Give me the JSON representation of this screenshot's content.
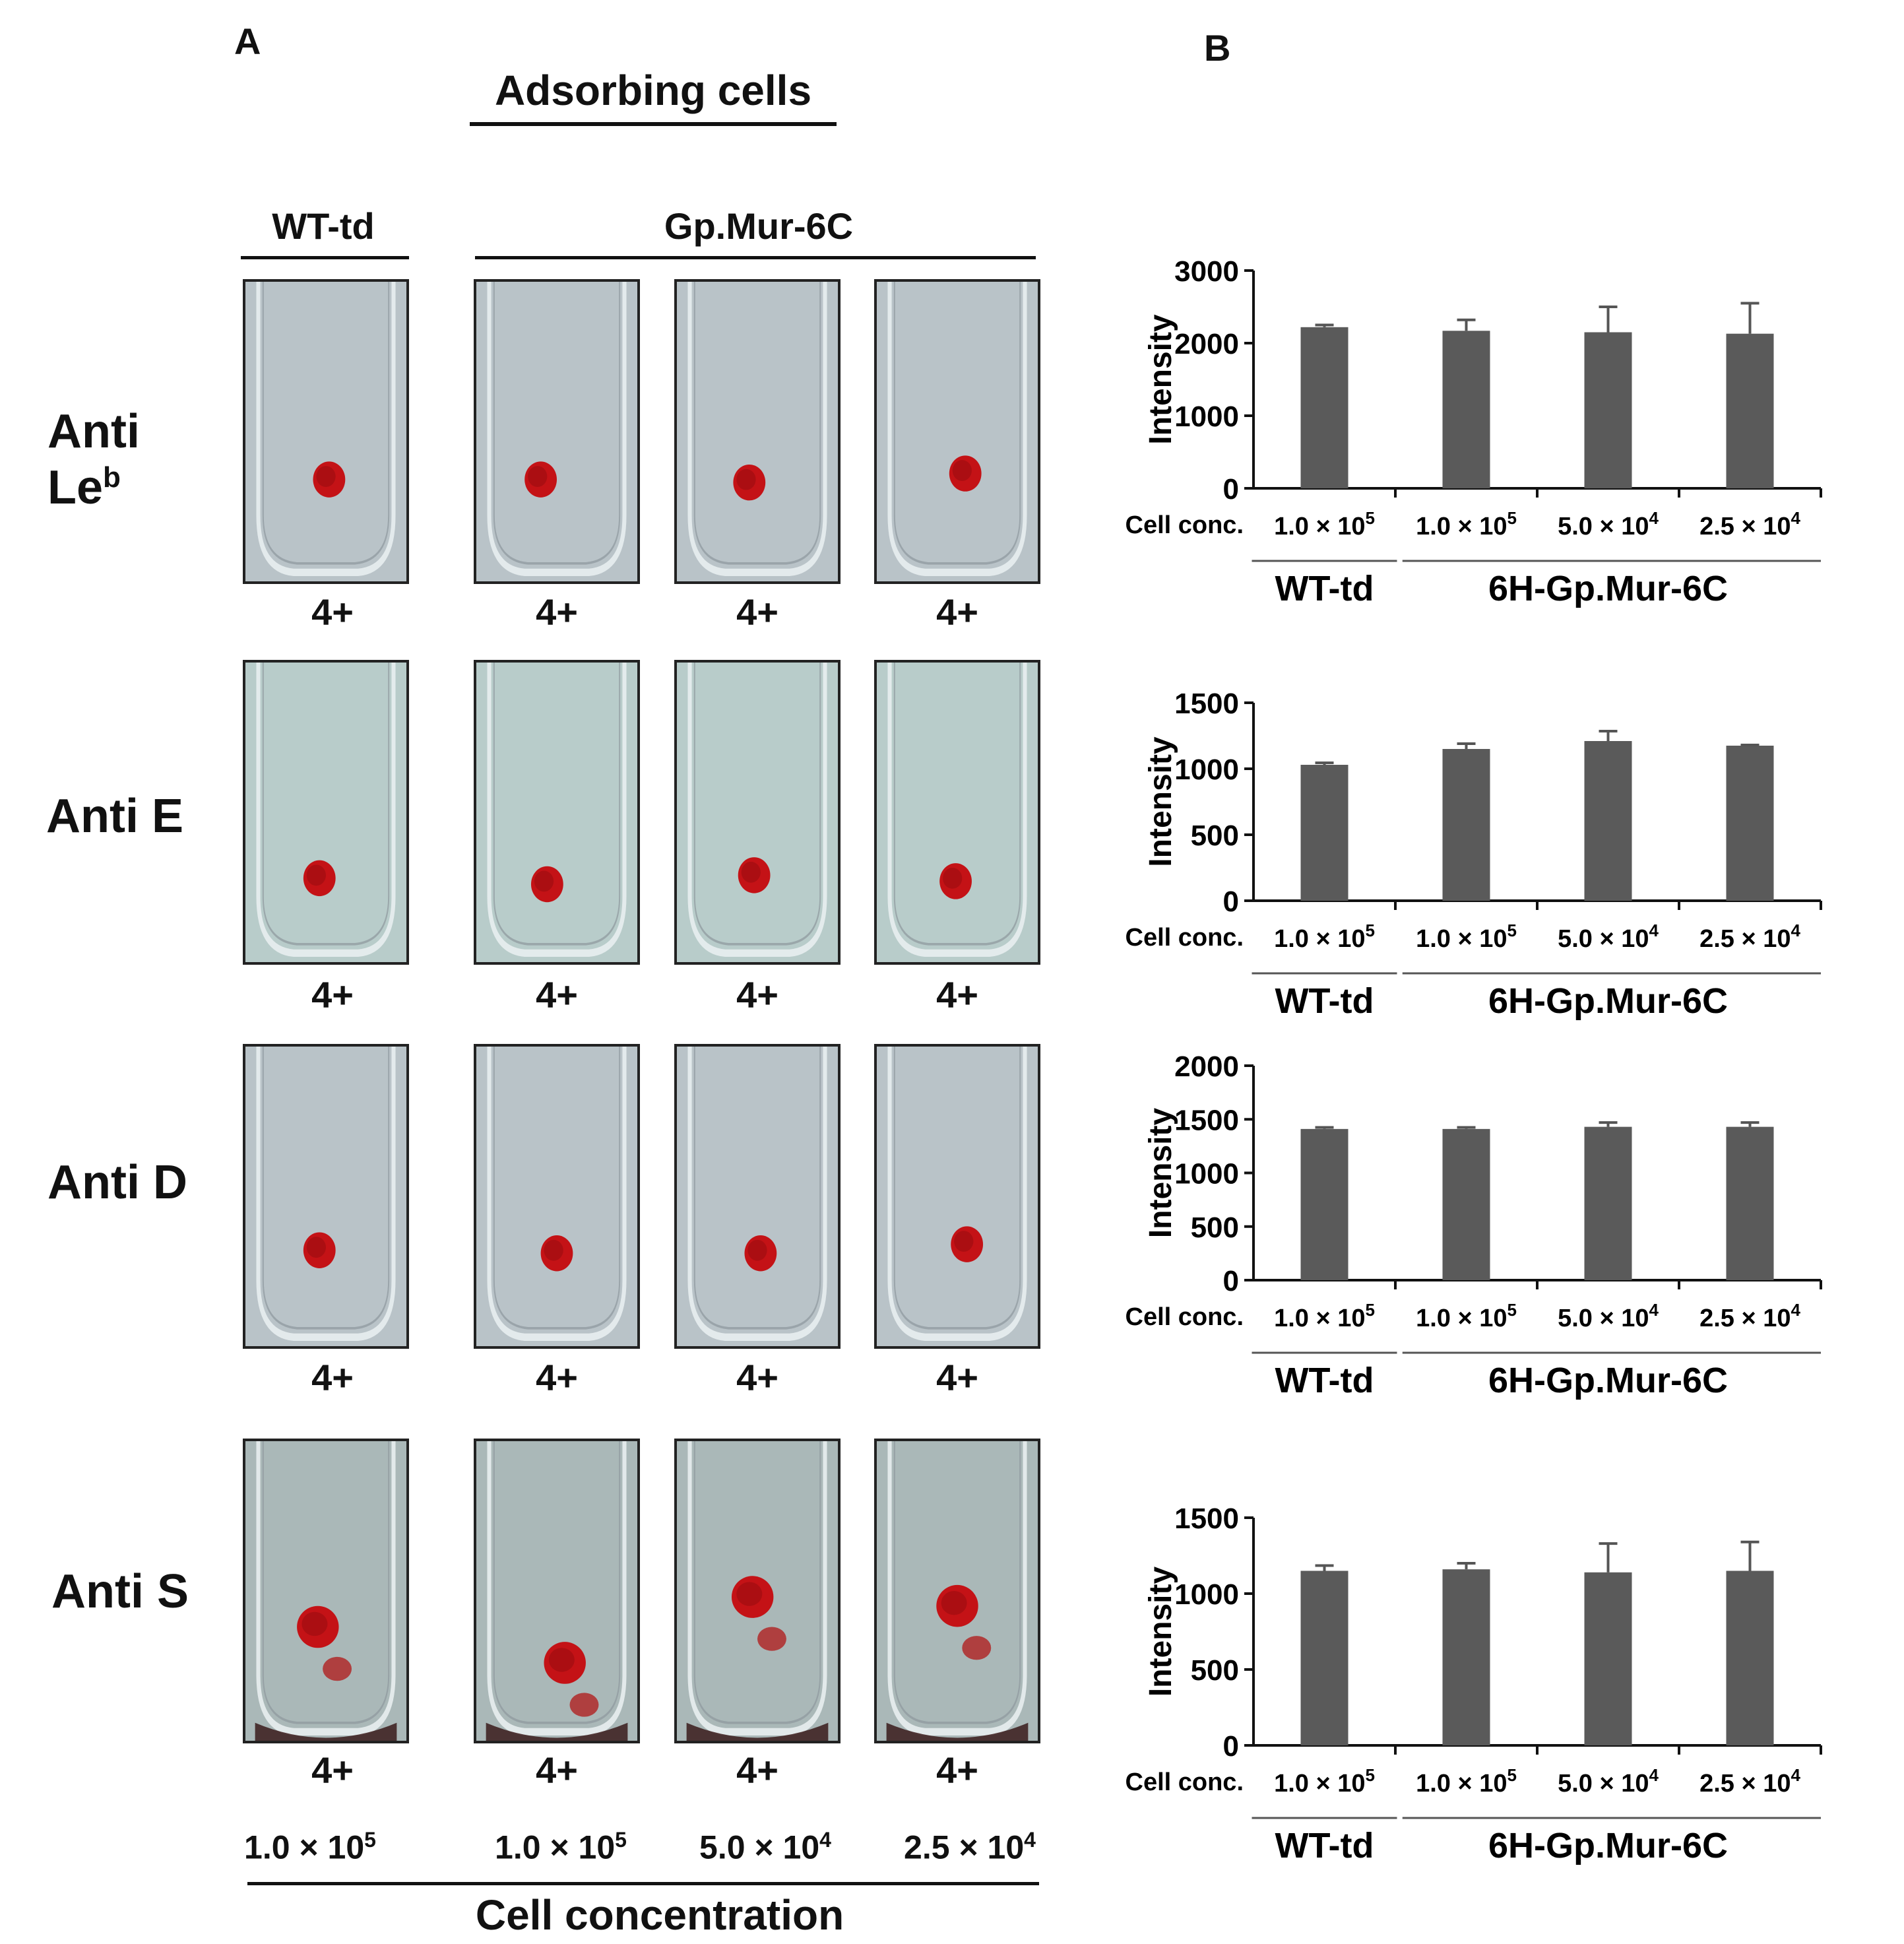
{
  "panel_a": {
    "letter": "A",
    "header": "Adsorbing cells",
    "group_wt": "WT-td",
    "group_gp": "Gp.Mur-6C",
    "rows": [
      {
        "label_line1": "Anti",
        "label_line2_base": "Le",
        "label_line2_sup": "b",
        "scores": [
          "4+",
          "4+",
          "4+",
          "4+"
        ]
      },
      {
        "label": "Anti E",
        "scores": [
          "4+",
          "4+",
          "4+",
          "4+"
        ]
      },
      {
        "label": "Anti D",
        "scores": [
          "4+",
          "4+",
          "4+",
          "4+"
        ]
      },
      {
        "label": "Anti S",
        "scores": [
          "4+",
          "4+",
          "4+",
          "4+"
        ]
      }
    ],
    "concentrations": [
      {
        "base": "1.0 × 10",
        "exp": "5"
      },
      {
        "base": "1.0 × 10",
        "exp": "5"
      },
      {
        "base": "5.0 × 10",
        "exp": "4"
      },
      {
        "base": "2.5 × 10",
        "exp": "4"
      }
    ],
    "footer": "Cell concentration"
  },
  "panel_b": {
    "letter": "B",
    "group_wt": "WT-td",
    "group_gp": "6H-Gp.Mur-6C",
    "row_label": "Cell conc."
  },
  "colors": {
    "bar": "#5a5a5a",
    "cell": "#c41216",
    "tube_bg": "#b9c3c8"
  },
  "chart_data": [
    {
      "type": "bar",
      "title": "Anti Le^b",
      "ylabel": "Intensity",
      "ylim": [
        0,
        3000
      ],
      "yticks": [
        0,
        1000,
        2000,
        3000
      ],
      "categories": [
        "1.0 × 10^5",
        "1.0 × 10^5",
        "5.0 × 10^4",
        "2.5 × 10^4"
      ],
      "values": [
        2220,
        2170,
        2150,
        2130
      ],
      "errors": [
        30,
        150,
        350,
        420
      ]
    },
    {
      "type": "bar",
      "title": "Anti E",
      "ylabel": "Intensity",
      "ylim": [
        0,
        1500
      ],
      "yticks": [
        0,
        500,
        1000,
        1500
      ],
      "categories": [
        "1.0 × 10^5",
        "1.0 × 10^5",
        "5.0 × 10^4",
        "2.5 × 10^4"
      ],
      "values": [
        1030,
        1150,
        1210,
        1175
      ],
      "errors": [
        15,
        40,
        75,
        5
      ]
    },
    {
      "type": "bar",
      "title": "Anti D",
      "ylabel": "Intensity",
      "ylim": [
        0,
        2000
      ],
      "yticks": [
        0,
        500,
        1000,
        1500,
        2000
      ],
      "categories": [
        "1.0 × 10^5",
        "1.0 × 10^5",
        "5.0 × 10^4",
        "2.5 × 10^4"
      ],
      "values": [
        1410,
        1410,
        1430,
        1430
      ],
      "errors": [
        15,
        15,
        40,
        40
      ]
    },
    {
      "type": "bar",
      "title": "Anti S",
      "ylabel": "Intensity",
      "ylim": [
        0,
        1500
      ],
      "yticks": [
        0,
        500,
        1000,
        1500
      ],
      "categories": [
        "1.0 × 10^5",
        "1.0 × 10^5",
        "5.0 × 10^4",
        "2.5 × 10^4"
      ],
      "values": [
        1150,
        1160,
        1140,
        1150
      ],
      "errors": [
        35,
        40,
        190,
        190
      ]
    }
  ]
}
